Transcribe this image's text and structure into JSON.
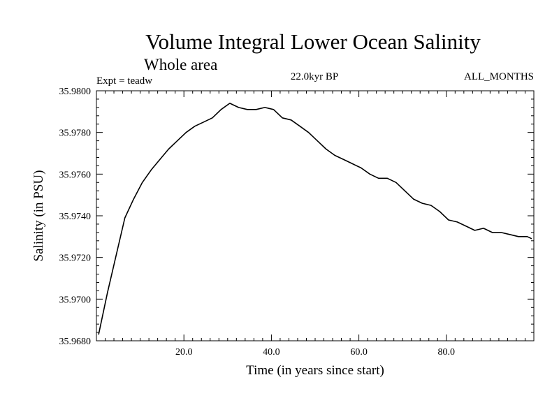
{
  "chart_data": {
    "type": "line",
    "title": "Volume Integral Lower Ocean Salinity",
    "subtitle": "Whole area",
    "annotations": {
      "left": "Expt = teadw",
      "center": "22.0kyr BP",
      "right": "ALL_MONTHS"
    },
    "xlabel": "Time (in years since start)",
    "ylabel": "Salinity (in PSU)",
    "xlim": [
      0,
      100
    ],
    "ylim": [
      35.968,
      35.98
    ],
    "x_major_ticks": [
      20,
      40,
      60,
      80
    ],
    "x_tick_labels": [
      "20.0",
      "40.0",
      "60.0",
      "80.0"
    ],
    "y_major_ticks": [
      35.968,
      35.97,
      35.972,
      35.974,
      35.976,
      35.978,
      35.98
    ],
    "y_tick_labels": [
      "35.9680",
      "35.9700",
      "35.9720",
      "35.9740",
      "35.9760",
      "35.9780",
      "35.9800"
    ],
    "grid": false,
    "series": [
      {
        "name": "Salinity",
        "x": [
          0.5,
          2.5,
          4.5,
          6.5,
          8.5,
          10.5,
          12.5,
          14.5,
          16.5,
          18.5,
          20.5,
          22.5,
          24.5,
          26.5,
          28.5,
          30.5,
          32.5,
          34.5,
          36.5,
          38.5,
          40.5,
          42.5,
          44.5,
          46.5,
          48.5,
          50.5,
          52.5,
          54.5,
          56.5,
          58.5,
          60.5,
          62.5,
          64.5,
          66.5,
          68.5,
          70.5,
          72.5,
          74.5,
          76.5,
          78.5,
          80.5,
          82.5,
          84.5,
          86.5,
          88.5,
          90.5,
          92.5,
          94.5,
          96.5,
          98.5,
          99.5
        ],
        "values": [
          35.9683,
          35.9703,
          35.9721,
          35.9739,
          35.9748,
          35.9756,
          35.9762,
          35.9767,
          35.9772,
          35.9776,
          35.978,
          35.9783,
          35.9785,
          35.9787,
          35.9791,
          35.9794,
          35.9792,
          35.9791,
          35.9791,
          35.9792,
          35.9791,
          35.9787,
          35.9786,
          35.9783,
          35.978,
          35.9776,
          35.9772,
          35.9769,
          35.9767,
          35.9765,
          35.9763,
          35.976,
          35.9758,
          35.9758,
          35.9756,
          35.9752,
          35.9748,
          35.9746,
          35.9745,
          35.9742,
          35.9738,
          35.9737,
          35.9735,
          35.9733,
          35.9734,
          35.9732,
          35.9732,
          35.9731,
          35.973,
          35.973,
          35.9729
        ]
      }
    ]
  }
}
